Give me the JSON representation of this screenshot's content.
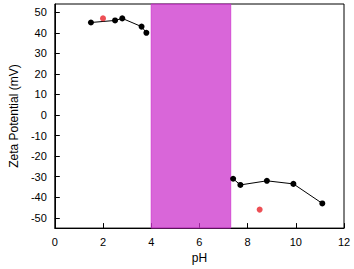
{
  "chart_data": {
    "type": "scatter",
    "x_label": "pH",
    "y_label": "Zeta Potential (mV)",
    "xlim": [
      0,
      12
    ],
    "xticks": [
      0,
      2,
      4,
      6,
      8,
      10,
      12
    ],
    "ylim": [
      -55,
      54
    ],
    "yticks": [
      -50,
      -40,
      -30,
      -20,
      -10,
      0,
      10,
      20,
      30,
      40,
      50
    ],
    "grid": false,
    "shaded_x": [
      4.0,
      7.3
    ],
    "shaded_color": "#cc33cc",
    "series": [
      {
        "type": "line",
        "marker": "circle",
        "color": "#000000",
        "x": [
          1.5,
          2.5,
          2.8,
          3.6,
          3.8
        ],
        "values": [
          45,
          46,
          47,
          43,
          40
        ]
      },
      {
        "type": "line",
        "marker": "circle",
        "color": "#000000",
        "x": [
          7.4,
          7.7,
          8.8,
          9.9,
          11.1
        ],
        "values": [
          -31,
          -34,
          -32,
          -33.5,
          -43
        ]
      },
      {
        "type": "scatter",
        "marker": "circle",
        "color": "#e8232a",
        "x": [
          2.0,
          8.5
        ],
        "values": [
          47,
          -46
        ]
      }
    ]
  }
}
